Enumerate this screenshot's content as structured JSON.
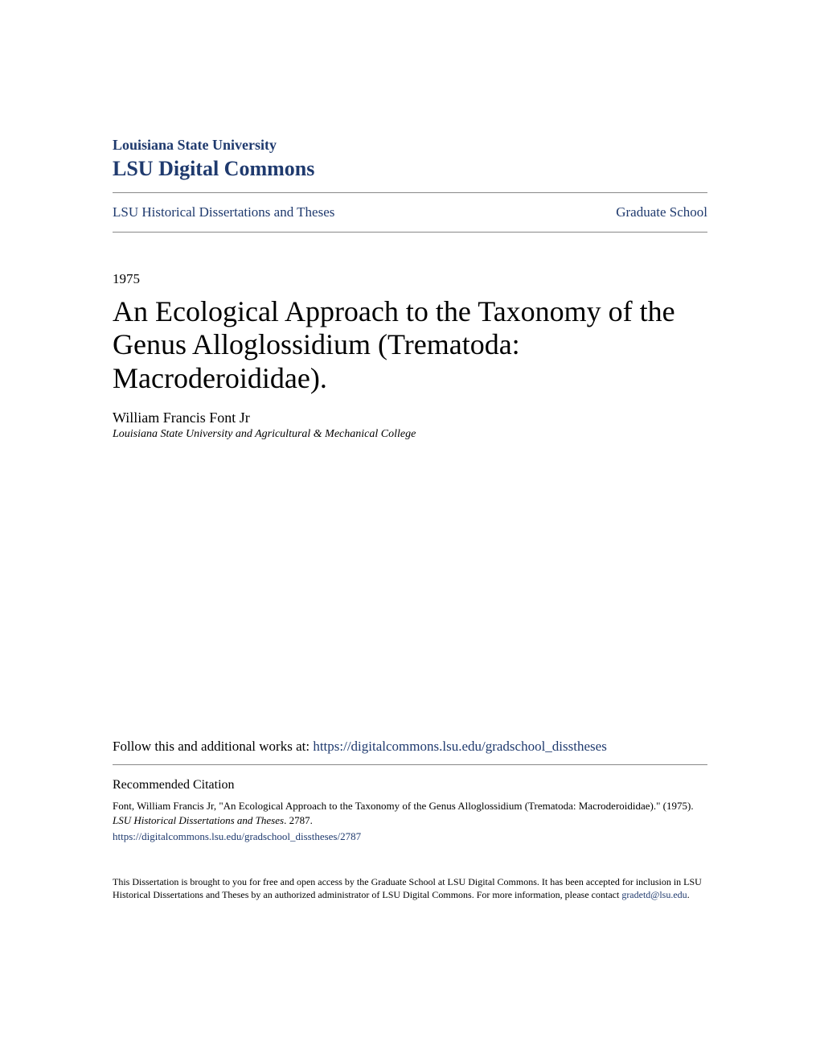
{
  "header": {
    "institution": "Louisiana State University",
    "repository": "LSU Digital Commons"
  },
  "breadcrumb": {
    "left": "LSU Historical Dissertations and Theses",
    "right": "Graduate School"
  },
  "document": {
    "year": "1975",
    "title": "An Ecological Approach to the Taxonomy of the Genus Alloglossidium (Trematoda: Macroderoididae).",
    "author": "William Francis Font Jr",
    "affiliation": "Louisiana State University and Agricultural & Mechanical College"
  },
  "follow": {
    "label": "Follow this and additional works at: ",
    "url": "https://digitalcommons.lsu.edu/gradschool_disstheses"
  },
  "citation": {
    "heading": "Recommended Citation",
    "text_prefix": "Font, William Francis Jr, \"An Ecological Approach to the Taxonomy of the Genus Alloglossidium (Trematoda: Macroderoididae).\" (1975). ",
    "text_italic": "LSU Historical Dissertations and Theses",
    "text_suffix": ". 2787.",
    "url": "https://digitalcommons.lsu.edu/gradschool_disstheses/2787"
  },
  "footer": {
    "text": "This Dissertation is brought to you for free and open access by the Graduate School at LSU Digital Commons. It has been accepted for inclusion in LSU Historical Dissertations and Theses by an authorized administrator of LSU Digital Commons. For more information, please contact ",
    "email": "gradetd@lsu.edu",
    "suffix": "."
  },
  "colors": {
    "link": "#1f3a6e",
    "text": "#000000",
    "divider": "#888888",
    "background": "#ffffff"
  },
  "typography": {
    "institution_fontsize": 18,
    "repository_fontsize": 26,
    "title_fontsize": 36,
    "body_fontsize": 17,
    "citation_fontsize": 13,
    "footer_fontsize": 12
  }
}
